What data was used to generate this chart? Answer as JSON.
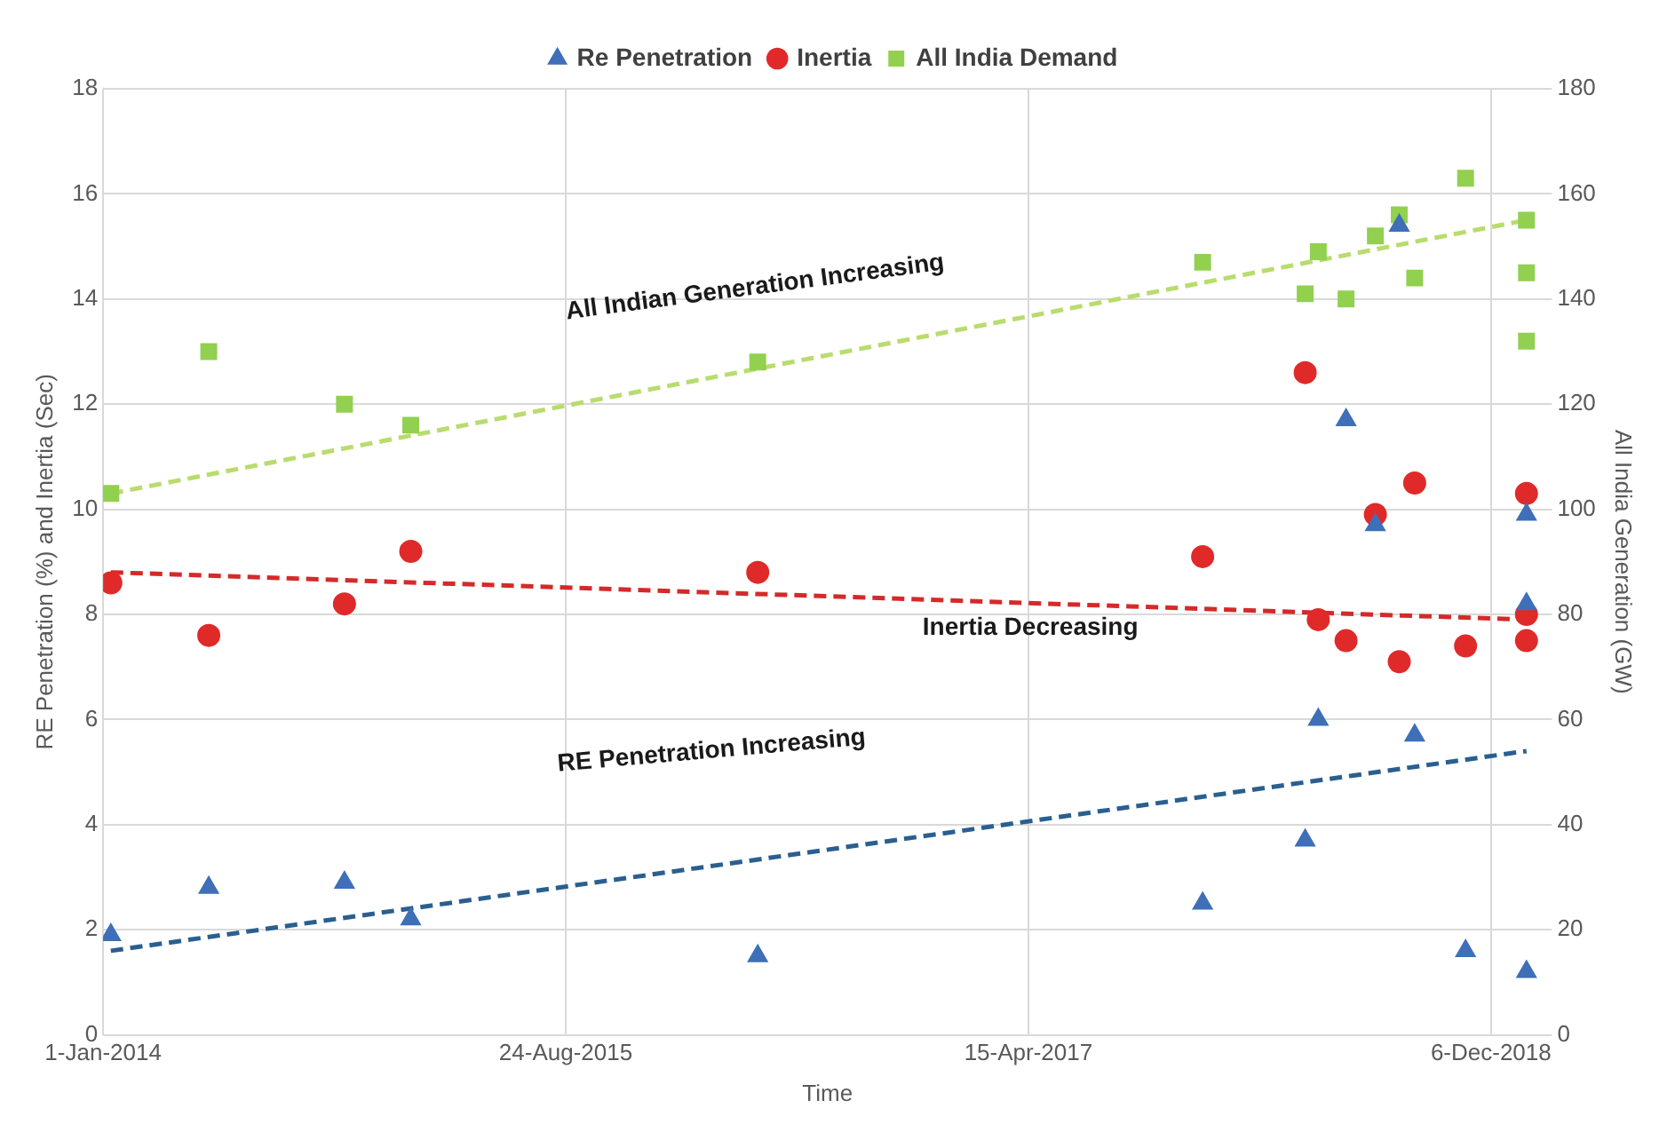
{
  "chart_data": {
    "type": "scatter",
    "xlabel": "Time",
    "ylabel": "RE Penetration (%) and Inertia (Sec)",
    "y2label": "All India Generation (GW)",
    "xlim": [
      "2014-01-01",
      "2019-02-23"
    ],
    "xticks": [
      {
        "value": "2014-01-01",
        "label": "1-Jan-2014"
      },
      {
        "value": "2015-08-24",
        "label": "24-Aug-2015"
      },
      {
        "value": "2017-04-15",
        "label": "15-Apr-2017"
      },
      {
        "value": "2018-12-06",
        "label": "6-Dec-2018"
      }
    ],
    "ylim": [
      0,
      18
    ],
    "yticks": [
      0,
      2,
      4,
      6,
      8,
      10,
      12,
      14,
      16,
      18
    ],
    "y2lim": [
      0,
      180
    ],
    "y2ticks": [
      0,
      20,
      40,
      60,
      80,
      100,
      120,
      140,
      160,
      180
    ],
    "grid": true,
    "legend": "top",
    "x": [
      "2014-01-11",
      "2014-05-18",
      "2014-11-10",
      "2015-02-04",
      "2016-04-29",
      "2017-11-27",
      "2018-04-09",
      "2018-04-26",
      "2018-06-01",
      "2018-07-09",
      "2018-08-09",
      "2018-08-29",
      "2018-11-03",
      "2019-01-21",
      "2019-01-21",
      "2019-01-21"
    ],
    "series": [
      {
        "name": "Re Penetration",
        "color": "#3f6fb8",
        "marker": "triangle",
        "values": [
          1.9,
          2.8,
          2.9,
          2.2,
          1.5,
          2.5,
          3.7,
          6.0,
          11.7,
          9.7,
          15.4,
          5.7,
          1.6,
          9.9,
          8.2,
          1.2
        ]
      },
      {
        "name": "Inertia",
        "color": "#e02a2a",
        "marker": "circle",
        "values": [
          8.6,
          7.6,
          8.2,
          9.2,
          8.8,
          9.1,
          12.6,
          7.9,
          7.5,
          9.9,
          7.1,
          10.5,
          7.4,
          10.3,
          8.0,
          7.5
        ]
      },
      {
        "name": "All India Demand",
        "color": "#92d050",
        "marker": "square",
        "axis": "y2",
        "values": [
          103,
          130,
          120,
          116,
          128,
          147,
          141,
          149,
          140,
          152,
          156,
          144,
          163,
          155,
          145,
          132
        ]
      },
      {
        "type": "line",
        "color": "#b9dc6e",
        "marker": "none",
        "line_style": "dashed",
        "axis": "y2",
        "x": [
          "2014-01-11",
          "2019-01-21"
        ],
        "values": [
          103,
          155
        ]
      },
      {
        "type": "line",
        "color": "#d42a2a",
        "marker": "none",
        "line_style": "dashed",
        "x": [
          "2014-01-11",
          "2019-01-21"
        ],
        "values": [
          8.8,
          7.9
        ]
      },
      {
        "type": "line",
        "color": "#2a5f8f",
        "marker": "none",
        "line_style": "dashed",
        "x": [
          "2014-01-11",
          "2019-01-21"
        ],
        "values": [
          1.6,
          5.4
        ]
      }
    ],
    "annotations": [
      "All Indian Generation Increasing",
      "Inertia Decreasing",
      "RE Penetration Increasing"
    ]
  }
}
